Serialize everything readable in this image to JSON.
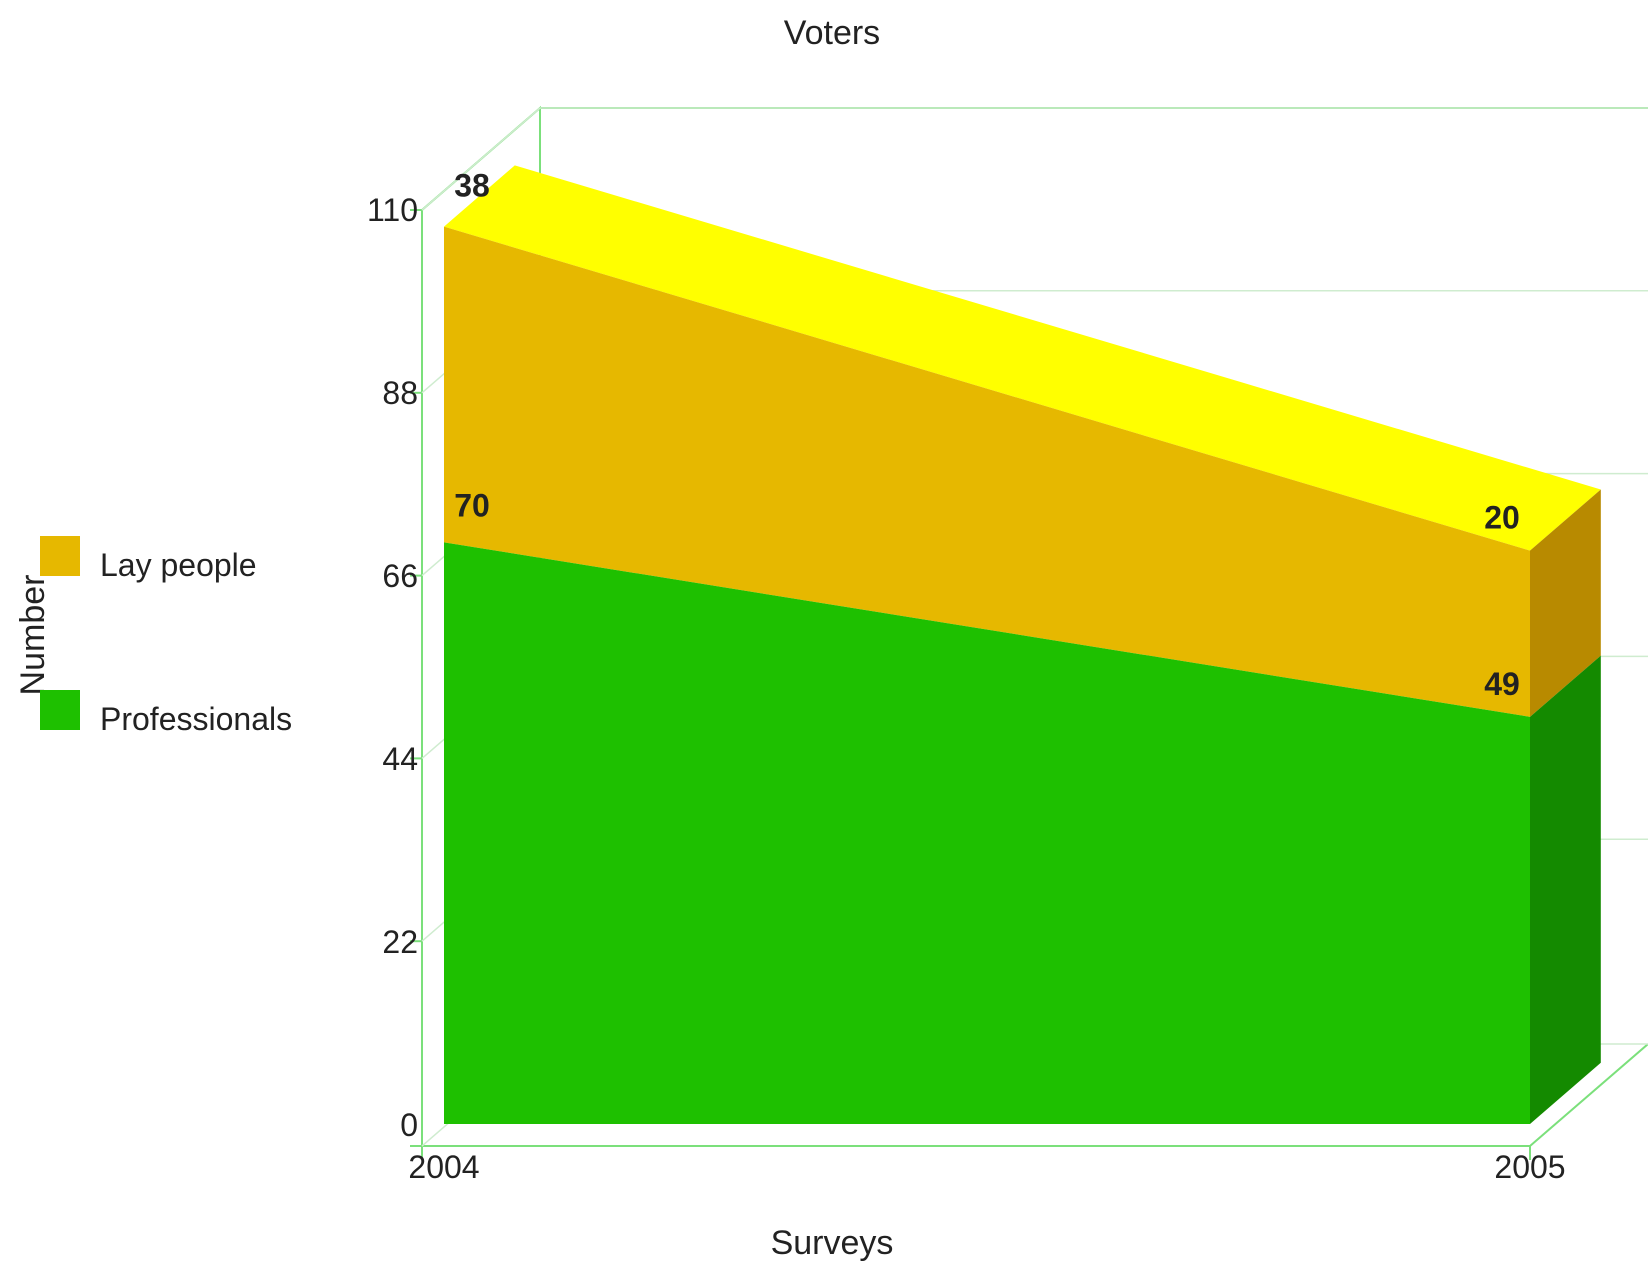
{
  "chart_data": {
    "type": "area",
    "stacked": true,
    "three_d": true,
    "title": "Voters",
    "xlabel": "Surveys",
    "ylabel": "Number",
    "categories": [
      "2004",
      "2005"
    ],
    "ylim": [
      0,
      110
    ],
    "yticks": [
      "0",
      "22",
      "44",
      "66",
      "88",
      "110"
    ],
    "series": [
      {
        "name": "Professionals",
        "values": [
          70,
          49
        ],
        "color": "#1ec000",
        "side_color": "#148a00"
      },
      {
        "name": "Lay people",
        "values": [
          38,
          20
        ],
        "color": "#e6b800",
        "side_color": "#b88a00",
        "top_color": "#ffff00"
      }
    ],
    "legend_position": "left",
    "grid": true,
    "wireframe_color": "#7be07b"
  }
}
